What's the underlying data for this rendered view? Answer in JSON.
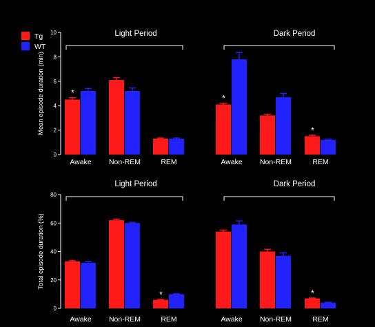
{
  "legend": [
    {
      "name": "Tg",
      "color": "#ff1a1a"
    },
    {
      "name": "WT",
      "color": "#2222ff"
    }
  ],
  "chart_data": [
    {
      "type": "bar",
      "ylabel": "Mean episode duration (min)",
      "ylim": [
        0,
        10
      ],
      "yticks": [
        "0",
        "2",
        "4",
        "6",
        "8",
        "10"
      ],
      "periods": [
        "Light Period",
        "Dark Period"
      ],
      "categories": [
        "Awake",
        "Non-REM",
        "REM",
        "Awake",
        "Non-REM",
        "REM"
      ],
      "series": [
        {
          "name": "Tg",
          "values": [
            4.5,
            6.1,
            1.3,
            4.1,
            3.2,
            1.5
          ],
          "errors": [
            0.15,
            0.2,
            0.05,
            0.1,
            0.1,
            0.08
          ]
        },
        {
          "name": "WT",
          "values": [
            5.2,
            5.2,
            1.3,
            7.8,
            4.7,
            1.2
          ],
          "errors": [
            0.2,
            0.25,
            0.05,
            0.55,
            0.3,
            0.05
          ]
        }
      ],
      "significance": [
        true,
        false,
        false,
        true,
        false,
        true
      ],
      "significance_mark": "*"
    },
    {
      "type": "bar",
      "ylabel": "Total episode duration (%)",
      "ylim": [
        0,
        80
      ],
      "yticks": [
        "0",
        "20",
        "40",
        "60",
        "80"
      ],
      "periods": [
        "Light Period",
        "Dark Period"
      ],
      "categories": [
        "Awake",
        "Non-REM",
        "REM",
        "Awake",
        "Non-REM",
        "REM"
      ],
      "series": [
        {
          "name": "Tg",
          "values": [
            33,
            62,
            6,
            54,
            40,
            7
          ],
          "errors": [
            0.5,
            0.6,
            0.3,
            1.0,
            1.5,
            0.3
          ]
        },
        {
          "name": "WT",
          "values": [
            32,
            60,
            10,
            59,
            37,
            4
          ],
          "errors": [
            1.0,
            0.4,
            0.2,
            2.5,
            2.0,
            0.3
          ]
        }
      ],
      "significance": [
        false,
        false,
        true,
        false,
        false,
        true
      ],
      "significance_mark": "*"
    }
  ]
}
